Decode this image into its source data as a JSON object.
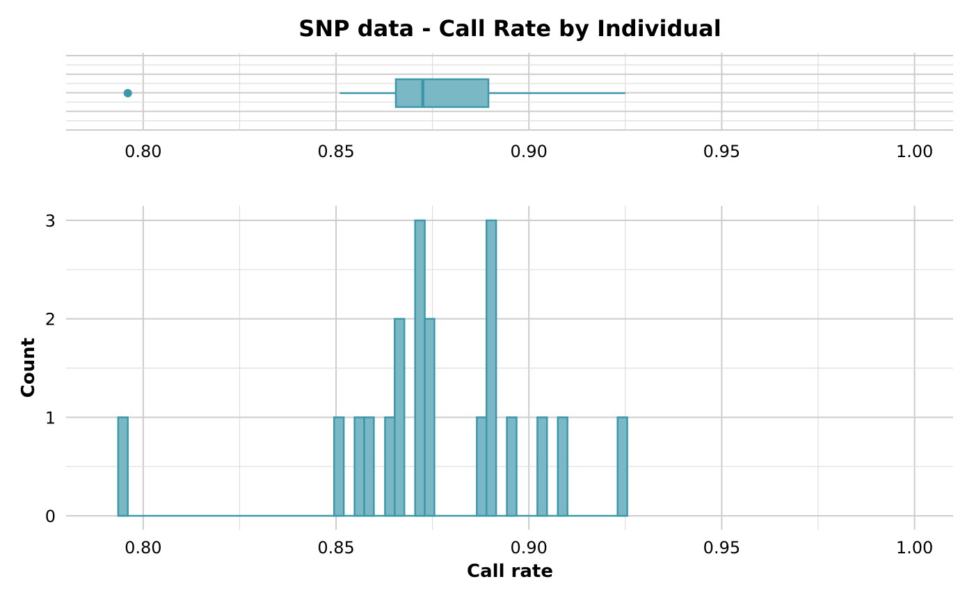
{
  "chart_data": {
    "title": "SNP data - Call Rate by Individual",
    "type": "histogram-with-boxplot",
    "xlabel": "Call rate",
    "ylabel": "Count",
    "xlim": [
      0.78,
      1.01
    ],
    "x_ticks": [
      "0.80",
      "0.85",
      "0.90",
      "0.95",
      "1.00"
    ],
    "y_ticks": [
      "0",
      "1",
      "2",
      "3"
    ],
    "ylim": [
      0,
      3
    ],
    "grid": true,
    "color": "#3b97a9",
    "fill": "#7ab8c6",
    "boxplot": {
      "outliers": [
        0.796
      ],
      "whisker_low": 0.851,
      "q1": 0.8655,
      "median": 0.8725,
      "q3": 0.8895,
      "whisker_high": 0.925
    },
    "histogram": {
      "bins": [
        {
          "x0": 0.7935,
          "x1": 0.796,
          "count": 1
        },
        {
          "x0": 0.8495,
          "x1": 0.852,
          "count": 1
        },
        {
          "x0": 0.8548,
          "x1": 0.8573,
          "count": 1
        },
        {
          "x0": 0.8573,
          "x1": 0.8598,
          "count": 1
        },
        {
          "x0": 0.8627,
          "x1": 0.8652,
          "count": 1
        },
        {
          "x0": 0.8652,
          "x1": 0.8677,
          "count": 2
        },
        {
          "x0": 0.8705,
          "x1": 0.873,
          "count": 3
        },
        {
          "x0": 0.873,
          "x1": 0.8755,
          "count": 2
        },
        {
          "x0": 0.8865,
          "x1": 0.889,
          "count": 1
        },
        {
          "x0": 0.889,
          "x1": 0.8915,
          "count": 3
        },
        {
          "x0": 0.8943,
          "x1": 0.8968,
          "count": 1
        },
        {
          "x0": 0.9022,
          "x1": 0.9047,
          "count": 1
        },
        {
          "x0": 0.9075,
          "x1": 0.91,
          "count": 1
        },
        {
          "x0": 0.923,
          "x1": 0.9255,
          "count": 1
        }
      ]
    }
  }
}
